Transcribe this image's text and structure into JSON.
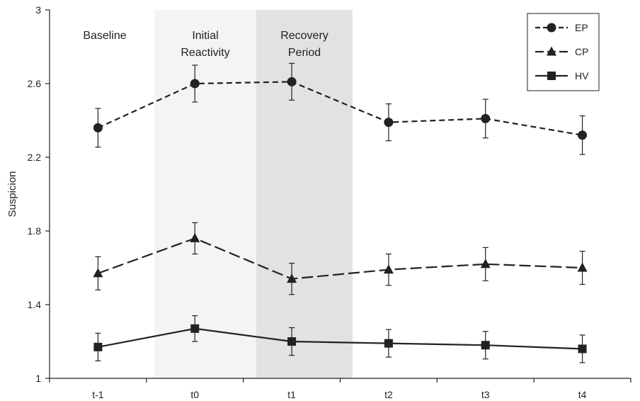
{
  "chart_data": {
    "type": "line",
    "title": "",
    "xlabel": "",
    "ylabel": "Suspicion",
    "ylim": [
      1,
      3
    ],
    "yticks": [
      1,
      1.4,
      1.8,
      2.2,
      2.6,
      3
    ],
    "ytick_labels": [
      "1",
      "1.4",
      "1.8",
      "2.2",
      "2.6",
      "3"
    ],
    "categories": [
      "t-1",
      "t0",
      "t1",
      "t2",
      "t3",
      "t4"
    ],
    "grid": false,
    "legend_position": "top-right",
    "regions": [
      {
        "label_lines": [
          "Baseline"
        ],
        "shaded": false,
        "color": "#ffffff",
        "label_at": "t-1"
      },
      {
        "label_lines": [
          "Initial",
          "Reactivity"
        ],
        "shaded": true,
        "color": "#f4f4f4",
        "from": "t-1/t0",
        "to": "t0/t1"
      },
      {
        "label_lines": [
          "Recovery",
          "Period"
        ],
        "shaded": true,
        "color": "#e2e2e4",
        "from": "t0/t1",
        "to": "t1/t2"
      }
    ],
    "series": [
      {
        "name": "EP",
        "marker": "circle",
        "dash": "dashed",
        "color": "#222222",
        "values": [
          2.36,
          2.6,
          2.61,
          2.39,
          2.41,
          2.32
        ],
        "error": [
          0.105,
          0.1,
          0.1,
          0.1,
          0.105,
          0.105
        ]
      },
      {
        "name": "CP",
        "marker": "triangle",
        "dash": "long-dash",
        "color": "#222222",
        "values": [
          1.57,
          1.76,
          1.54,
          1.59,
          1.62,
          1.6
        ],
        "error": [
          0.09,
          0.085,
          0.085,
          0.085,
          0.09,
          0.09
        ]
      },
      {
        "name": "HV",
        "marker": "square",
        "dash": "solid",
        "color": "#222222",
        "values": [
          1.17,
          1.27,
          1.2,
          1.19,
          1.18,
          1.16
        ],
        "error": [
          0.075,
          0.07,
          0.075,
          0.075,
          0.075,
          0.075
        ]
      }
    ]
  }
}
